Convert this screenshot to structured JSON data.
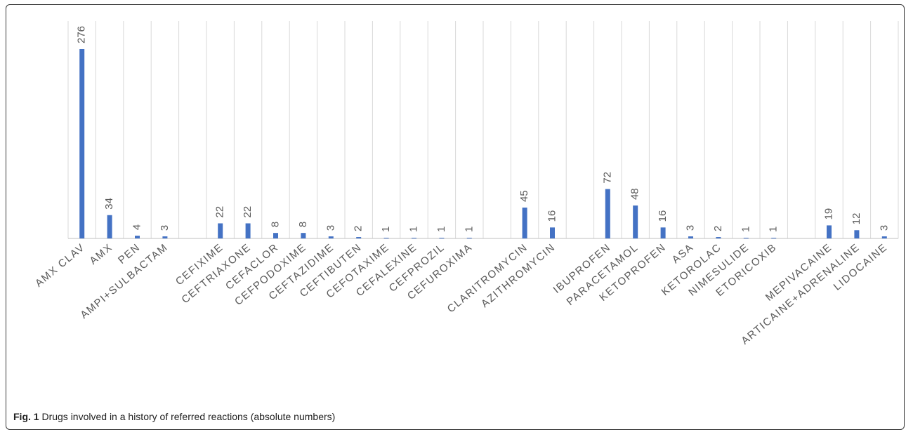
{
  "caption": {
    "label": "Fig. 1",
    "text": "Drugs involved in a history of referred reactions (absolute numbers)"
  },
  "colors": {
    "bar": "#4472C4",
    "grid": "#d9d9d9",
    "label": "#595959",
    "axis": "#bfbfbf"
  },
  "chart_data": {
    "type": "bar",
    "title": "",
    "xlabel": "",
    "ylabel": "",
    "ylim": [
      0,
      276
    ],
    "grid": true,
    "legend": "none",
    "data_labels": true,
    "categories": [
      "AMX CLAV",
      "AMX",
      "PEN",
      "AMPI+SULBACTAM",
      "",
      "CEFIXIME",
      "CEFTRIAXONE",
      "CEFACLOR",
      "CEFPODOXIME",
      "CEFTAZIDIME",
      "CEFTIBUTEN",
      "CEFOTAXIME",
      "CEFALEXINE",
      "CEFPROZIL",
      "CEFUROXIMA",
      "",
      "CLARITROMYCIN",
      "AZITHROMYCIN",
      "",
      "IBUPROFEN",
      "PARACETAMOL",
      "KETOPROFEN",
      "ASA",
      "KETOROLAC",
      "NIMESULIDE",
      "ETORICOXIB",
      "",
      "MEPIVACAINE",
      "ARTICAINE+ADRENALINE",
      "LIDOCAINE"
    ],
    "values": [
      276,
      34,
      4,
      3,
      null,
      22,
      22,
      8,
      8,
      3,
      2,
      1,
      1,
      1,
      1,
      null,
      45,
      16,
      null,
      72,
      48,
      16,
      3,
      2,
      1,
      1,
      null,
      19,
      12,
      3
    ]
  }
}
